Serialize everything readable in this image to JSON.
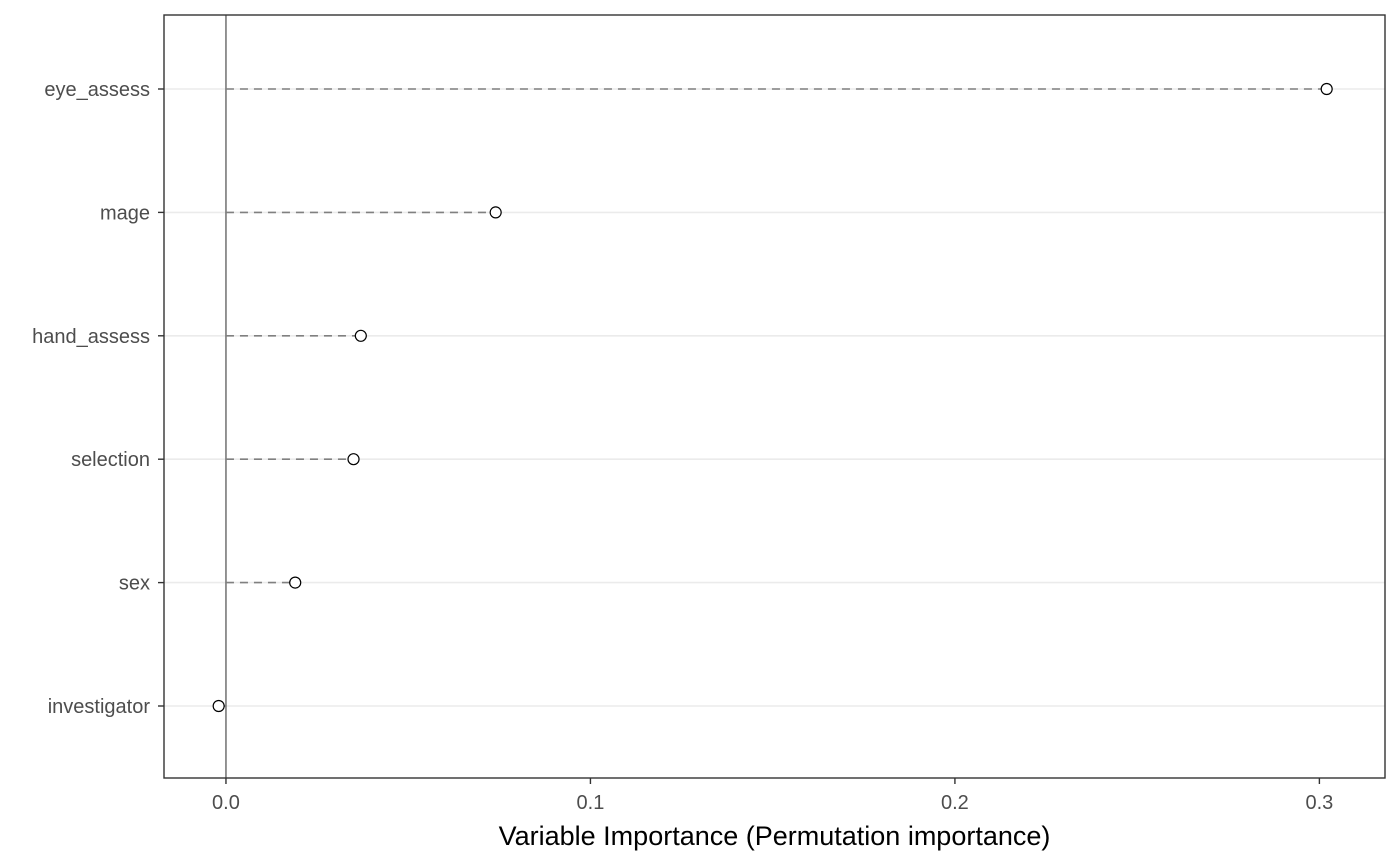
{
  "chart_data": {
    "type": "scatter",
    "subtype": "dot-plot",
    "title": "",
    "xlabel": "Variable Importance (Permutation importance)",
    "ylabel": "",
    "categories": [
      "eye_assess",
      "mage",
      "hand_assess",
      "selection",
      "sex",
      "investigator"
    ],
    "values": [
      0.302,
      0.074,
      0.037,
      0.035,
      0.019,
      -0.002
    ],
    "xlim": [
      -0.017,
      0.318
    ],
    "x_ticks": [
      0.0,
      0.1,
      0.2,
      0.3
    ],
    "x_tick_labels": [
      "0.0",
      "0.1",
      "0.2",
      "0.3"
    ],
    "reference_line_x": 0,
    "grid": "horizontal major lines",
    "legend": "none",
    "colors": {
      "gridline": "#ebebeb",
      "panel_border": "#333333",
      "segment": "#808080",
      "reference_line": "#666666",
      "point_stroke": "#000000",
      "point_fill": "#ffffff",
      "tick_label": "#4d4d4d",
      "axis_title": "#000000"
    }
  }
}
